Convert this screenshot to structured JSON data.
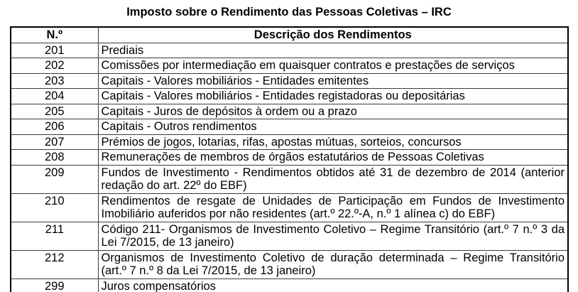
{
  "title": "Imposto sobre o Rendimento das Pessoas Coletivas – IRC",
  "table": {
    "headers": {
      "number": "N.º",
      "description": "Descrição dos Rendimentos"
    },
    "rows": [
      {
        "number": "201",
        "description": "Prediais"
      },
      {
        "number": "202",
        "description": "Comissões por intermediação em quaisquer contratos e prestações de serviços"
      },
      {
        "number": "203",
        "description": "Capitais - Valores mobiliários - Entidades emitentes"
      },
      {
        "number": "204",
        "description": "Capitais - Valores mobiliários - Entidades registadoras ou depositárias"
      },
      {
        "number": "205",
        "description": "Capitais - Juros de depósitos à ordem ou a prazo"
      },
      {
        "number": "206",
        "description": "Capitais - Outros rendimentos"
      },
      {
        "number": "207",
        "description": "Prémios de jogos, lotarias, rifas, apostas mútuas, sorteios, concursos"
      },
      {
        "number": "208",
        "description": "Remunerações de membros de órgãos estatutários de Pessoas Coletivas"
      },
      {
        "number": "209",
        "description": "Fundos de Investimento - Rendimentos obtidos até 31 de dezembro de 2014 (anterior redação do art. 22º do EBF)"
      },
      {
        "number": "210",
        "description": "Rendimentos de resgate de Unidades de Participação em Fundos de Investimento Imobiliário auferidos por não residentes (art.º 22.º-A, n.º 1 alínea c) do EBF)"
      },
      {
        "number": "211",
        "description": "Código 211- Organismos de Investimento Coletivo – Regime Transitório (art.º 7 n.º 3 da Lei 7/2015, de 13 janeiro)"
      },
      {
        "number": "212",
        "description": "Organismos de Investimento Coletivo de duração determinada – Regime Transitório (art.º 7 n.º 8 da Lei 7/2015, de 13 janeiro)"
      },
      {
        "number": "299",
        "description": "Juros compensatórios"
      }
    ]
  },
  "colors": {
    "text": "#000000",
    "background": "#ffffff",
    "border_outer": "#000000",
    "border_inner": "#3c3c3c"
  }
}
